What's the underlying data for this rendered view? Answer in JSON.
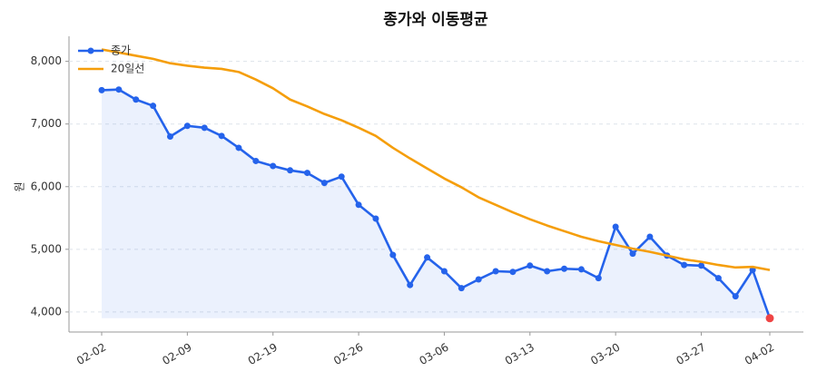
{
  "chart_data": {
    "type": "line",
    "title": "종가와 이동평균",
    "y_label": "원",
    "categories": [
      "02-02",
      null,
      null,
      null,
      null,
      "02-09",
      null,
      null,
      null,
      null,
      "02-19",
      null,
      null,
      null,
      null,
      "02-26",
      null,
      null,
      null,
      null,
      "03-06",
      null,
      null,
      null,
      null,
      "03-13",
      null,
      null,
      null,
      null,
      "03-20",
      null,
      null,
      null,
      null,
      "03-27",
      null,
      null,
      null,
      "04-02"
    ],
    "series": [
      {
        "name": "종가",
        "color": "#2563eb",
        "marker": true,
        "fill": true,
        "values": [
          7540,
          7550,
          7390,
          7290,
          6800,
          6970,
          6940,
          6810,
          6620,
          6410,
          6330,
          6260,
          6220,
          6060,
          6160,
          5710,
          5490,
          4910,
          4430,
          4870,
          4650,
          4380,
          4520,
          4650,
          4640,
          4740,
          4650,
          4690,
          4680,
          4540,
          5360,
          4930,
          5200,
          4900,
          4750,
          4740,
          4540,
          4250,
          4670,
          3900
        ]
      },
      {
        "name": "20일선",
        "color": "#f59e0b",
        "marker": false,
        "fill": false,
        "values": [
          8190,
          8140,
          8090,
          8040,
          7970,
          7930,
          7900,
          7880,
          7830,
          7710,
          7570,
          7390,
          7280,
          7160,
          7060,
          6940,
          6810,
          6620,
          6450,
          6290,
          6130,
          5990,
          5830,
          5710,
          5590,
          5480,
          5380,
          5290,
          5200,
          5130,
          5070,
          5010,
          4960,
          4900,
          4840,
          4800,
          4750,
          4710,
          4720,
          4670
        ]
      }
    ],
    "last_point_color": "#ef4444",
    "ylim": [
      3680,
      8400
    ],
    "yticks": [
      {
        "value": 4000,
        "label": "4,000"
      },
      {
        "value": 5000,
        "label": "5,000"
      },
      {
        "value": 6000,
        "label": "6,000"
      },
      {
        "value": 7000,
        "label": "7,000"
      },
      {
        "value": 8000,
        "label": "8,000"
      }
    ],
    "grid": true,
    "legend": "upper-left"
  }
}
